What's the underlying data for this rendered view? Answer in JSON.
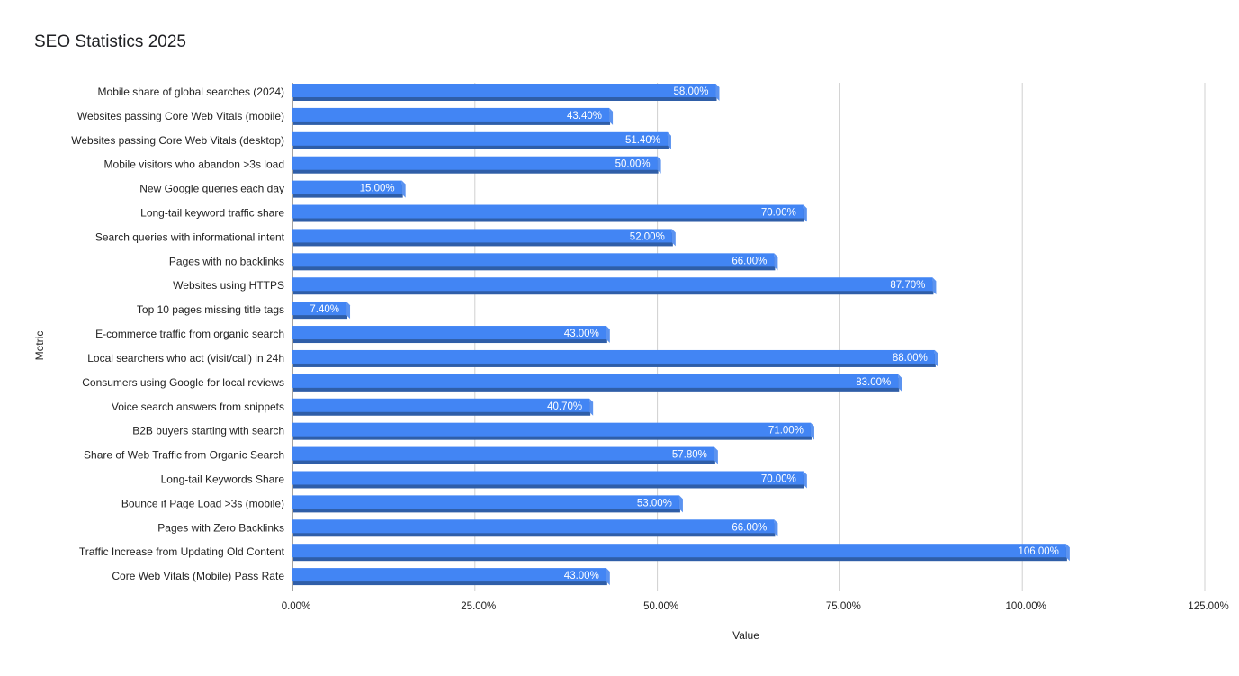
{
  "chart_data": {
    "type": "bar",
    "orientation": "horizontal",
    "title": "SEO Statistics 2025",
    "xlabel": "Value",
    "ylabel": "Metric",
    "xlim": [
      0,
      125
    ],
    "x_ticks": [
      0,
      25,
      50,
      75,
      100,
      125
    ],
    "x_tick_labels": [
      "0.00%",
      "25.00%",
      "50.00%",
      "75.00%",
      "100.00%",
      "125.00%"
    ],
    "grid": "vertical",
    "legend": "none",
    "bar_color": "#4285f4",
    "bar_shadow_color": "#2f5ea8",
    "categories": [
      "Mobile share of global searches (2024)",
      "Websites passing Core Web Vitals (mobile)",
      "Websites passing Core Web Vitals (desktop)",
      "Mobile visitors who abandon >3s load",
      "New Google queries each day",
      "Long-tail keyword traffic share",
      "Search queries with informational intent",
      "Pages with no backlinks",
      "Websites using HTTPS",
      "Top 10 pages missing title tags",
      "E-commerce traffic from organic search",
      "Local searchers who act (visit/call) in 24h",
      "Consumers using Google for local reviews",
      "Voice search answers from snippets",
      "B2B buyers starting with search",
      "Share of Web Traffic from Organic Search",
      "Long-tail Keywords Share",
      "Bounce if Page Load >3s (mobile)",
      "Pages with Zero Backlinks",
      "Traffic Increase from Updating Old Content",
      "Core Web Vitals (Mobile) Pass Rate"
    ],
    "values": [
      58,
      43.4,
      51.4,
      50,
      15,
      70,
      52,
      66,
      87.7,
      7.4,
      43,
      88,
      83,
      40.7,
      71,
      57.8,
      70,
      53,
      66,
      106,
      43
    ],
    "data_labels": [
      "58.00%",
      "43.40%",
      "51.40%",
      "50.00%",
      "15.00%",
      "70.00%",
      "52.00%",
      "66.00%",
      "87.70%",
      "7.40%",
      "43.00%",
      "88.00%",
      "83.00%",
      "40.70%",
      "71.00%",
      "57.80%",
      "70.00%",
      "53.00%",
      "66.00%",
      "106.00%",
      "43.00%"
    ]
  }
}
